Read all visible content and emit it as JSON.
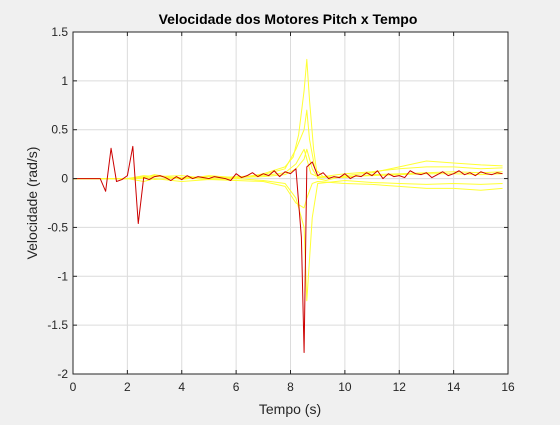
{
  "chart_data": {
    "type": "line",
    "title": "Velocidade dos Motores Pitch x Tempo",
    "xlabel": "Tempo (s)",
    "ylabel": "Velocidade (rad/s)",
    "xlim": [
      0,
      16
    ],
    "ylim": [
      -2,
      1.5
    ],
    "xticks": [
      0,
      2,
      4,
      6,
      8,
      10,
      12,
      14,
      16
    ],
    "yticks": [
      -2,
      -1.5,
      -1,
      -0.5,
      0,
      0.5,
      1,
      1.5
    ],
    "xtick_labels": [
      "0",
      "2",
      "4",
      "6",
      "8",
      "10",
      "12",
      "14",
      "16"
    ],
    "ytick_labels": [
      "-2",
      "-1.5",
      "-1",
      "-0.5",
      "0",
      "0.5",
      "1",
      "1.5"
    ],
    "grid": true,
    "colors": {
      "background": "#f0f0f0",
      "axes": "#ffffff",
      "grid": "#dcdcdc",
      "highlight": "#cc0000",
      "others": "#ffff33"
    },
    "series": [
      {
        "color": "#ffff33",
        "x": [
          0,
          1.2,
          1.3,
          1.5,
          2.0,
          2.3,
          2.6,
          3.0,
          3.5,
          4.0,
          5.0,
          6.0,
          7.0,
          7.8,
          8.1,
          8.3,
          8.5,
          8.6,
          8.7,
          8.85,
          9.0,
          9.3,
          10.0,
          11.0,
          12.0,
          13.0,
          14.0,
          15.0,
          15.8
        ],
        "y": [
          0,
          0,
          0,
          0,
          0,
          0,
          0.02,
          0.03,
          0.01,
          0,
          0.02,
          0,
          0.05,
          0.12,
          0.22,
          0.45,
          0.9,
          1.22,
          0.8,
          0.3,
          0,
          -0.02,
          0.03,
          0.06,
          0.12,
          0.18,
          0.16,
          0.14,
          0.13
        ]
      },
      {
        "color": "#ffff33",
        "x": [
          0,
          1.2,
          2.0,
          2.6,
          3.0,
          4.0,
          5.0,
          6.0,
          7.0,
          7.8,
          8.2,
          8.5,
          8.6,
          8.7,
          8.9,
          9.2,
          10.0,
          11.0,
          12.0,
          13.0,
          14.0,
          15.0,
          15.8
        ],
        "y": [
          0,
          0,
          0,
          0.01,
          0.04,
          -0.01,
          0.03,
          0.01,
          0.04,
          0.1,
          0.3,
          0.5,
          0.7,
          0.4,
          0.1,
          0.02,
          0.05,
          0.07,
          0.1,
          0.12,
          0.12,
          0.1,
          0.11
        ]
      },
      {
        "color": "#ffff33",
        "x": [
          0,
          1.2,
          2.0,
          2.6,
          3.0,
          4.0,
          5.0,
          6.0,
          7.0,
          7.8,
          8.2,
          8.5,
          8.6,
          8.75,
          9.0,
          10.0,
          11.0,
          12.0,
          13.0,
          14.0,
          15.0,
          15.8
        ],
        "y": [
          0,
          0,
          0,
          0.03,
          0.02,
          0.03,
          0,
          0.02,
          0.03,
          0.06,
          0.15,
          0.3,
          0.2,
          0.05,
          0.02,
          0.01,
          0.04,
          0.05,
          0.06,
          0.07,
          0.06,
          0.07
        ]
      },
      {
        "color": "#ffff33",
        "x": [
          0,
          1.2,
          2.0,
          2.6,
          3.0,
          4.0,
          5.0,
          6.0,
          7.0,
          7.8,
          8.2,
          8.5,
          8.6,
          8.8,
          9.0,
          10.0,
          11.0,
          12.0,
          13.0,
          14.0,
          15.0,
          15.8
        ],
        "y": [
          0,
          0,
          0,
          0.02,
          -0.01,
          0.01,
          -0.01,
          0,
          -0.02,
          -0.05,
          -0.2,
          -0.5,
          -1.25,
          -0.4,
          -0.05,
          -0.02,
          -0.04,
          -0.05,
          -0.06,
          -0.05,
          -0.06,
          -0.05
        ]
      },
      {
        "color": "#ffff33",
        "x": [
          0,
          1.2,
          2.0,
          2.6,
          3.0,
          4.0,
          5.0,
          6.0,
          7.0,
          7.8,
          8.2,
          8.5,
          8.6,
          8.8,
          9.0,
          10.0,
          11.0,
          12.0,
          13.0,
          14.0,
          15.0,
          15.8
        ],
        "y": [
          0,
          0,
          0,
          -0.03,
          0,
          -0.03,
          -0.01,
          -0.02,
          -0.03,
          -0.08,
          -0.25,
          -0.3,
          -0.2,
          -0.05,
          -0.03,
          -0.05,
          -0.06,
          -0.08,
          -0.1,
          -0.1,
          -0.12,
          -0.1
        ]
      },
      {
        "color": "#ffff33",
        "x": [
          0,
          1.2,
          2.0,
          2.6,
          3.0,
          4.0,
          5.0,
          6.0,
          7.0,
          7.8,
          8.2,
          8.5,
          8.6,
          8.8,
          9.0,
          10.0,
          11.0,
          12.0,
          13.0,
          14.0,
          15.0,
          15.8
        ],
        "y": [
          0,
          0,
          0,
          0,
          0.02,
          0.01,
          0.02,
          0.01,
          0.02,
          0.04,
          0.1,
          0.2,
          0.3,
          0.1,
          0.01,
          0.02,
          0.03,
          0.04,
          0.05,
          0.05,
          0.04,
          0.05
        ]
      },
      {
        "color": "#cc0000",
        "x": [
          0,
          1.0,
          1.2,
          1.4,
          1.6,
          1.8,
          2.0,
          2.2,
          2.4,
          2.6,
          2.8,
          3.0,
          3.2,
          3.4,
          3.6,
          3.8,
          4.0,
          4.2,
          4.4,
          4.6,
          4.8,
          5.0,
          5.2,
          5.4,
          5.6,
          5.8,
          6.0,
          6.2,
          6.4,
          6.6,
          6.8,
          7.0,
          7.2,
          7.4,
          7.6,
          7.8,
          8.0,
          8.2,
          8.4,
          8.5,
          8.6,
          8.8,
          9.0,
          9.2,
          9.4,
          9.6,
          9.8,
          10.0,
          10.2,
          10.4,
          10.6,
          10.8,
          11.0,
          11.2,
          11.4,
          11.6,
          11.8,
          12.0,
          12.2,
          12.4,
          12.6,
          12.8,
          13.0,
          13.2,
          13.4,
          13.6,
          13.8,
          14.0,
          14.2,
          14.4,
          14.6,
          14.8,
          15.0,
          15.2,
          15.4,
          15.6,
          15.8
        ],
        "y": [
          0,
          0,
          -0.13,
          0.31,
          -0.03,
          -0.01,
          0.03,
          0.33,
          -0.46,
          0.01,
          -0.01,
          0.02,
          0.03,
          0.01,
          -0.02,
          0.02,
          -0.01,
          0.03,
          0.0,
          0.02,
          0.01,
          0.0,
          0.02,
          0.01,
          0.0,
          -0.02,
          0.05,
          0.01,
          0.03,
          0.06,
          0.02,
          0.05,
          0.03,
          0.08,
          0.02,
          0.07,
          0.05,
          0.1,
          -0.6,
          -1.78,
          0.12,
          0.17,
          0.03,
          0.06,
          0.0,
          0.02,
          0.01,
          0.05,
          0.0,
          0.03,
          0.02,
          0.06,
          0.03,
          0.08,
          0.0,
          0.05,
          0.02,
          0.03,
          0.01,
          0.08,
          0.05,
          0.04,
          0.06,
          0.01,
          0.04,
          0.07,
          0.03,
          0.05,
          0.08,
          0.04,
          0.06,
          0.03,
          0.07,
          0.05,
          0.04,
          0.06,
          0.05
        ]
      }
    ]
  }
}
